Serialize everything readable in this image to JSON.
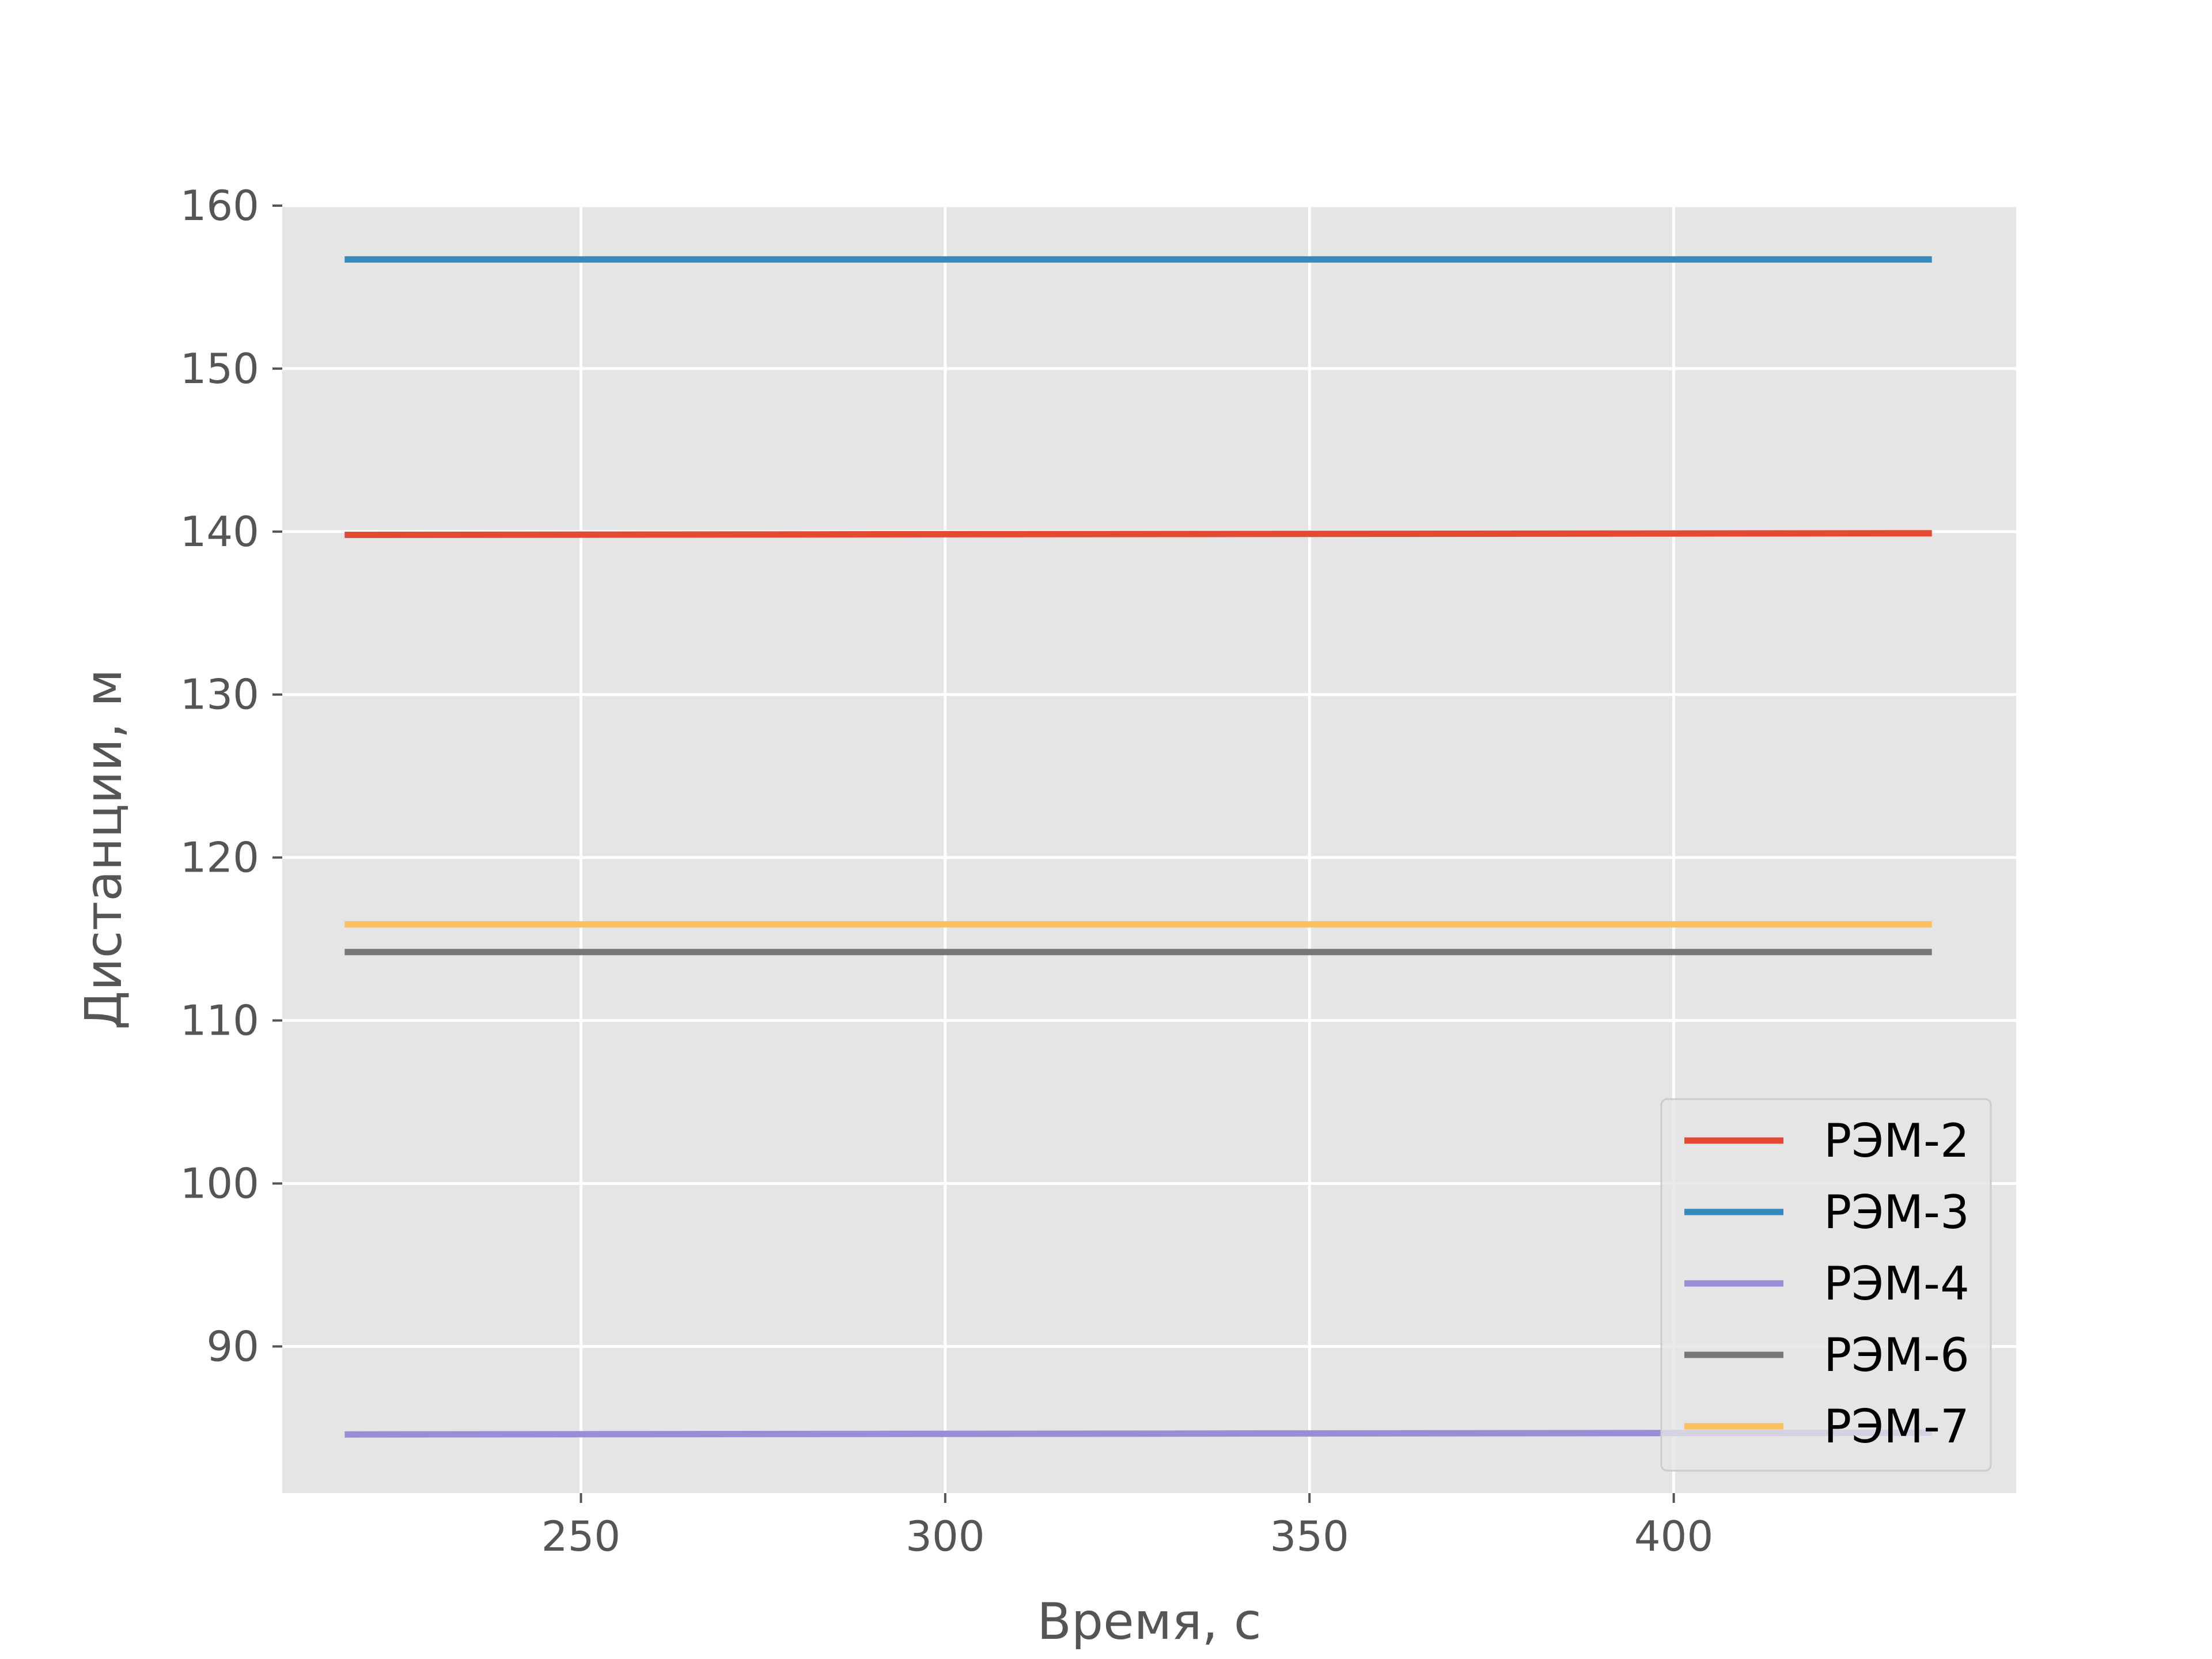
{
  "chart_data": {
    "type": "line",
    "title": "",
    "xlabel": "Время, с",
    "ylabel": "Дистанции, м",
    "xlim": [
      209,
      447
    ],
    "ylim": [
      81,
      160
    ],
    "xticks": [
      250,
      300,
      350,
      400
    ],
    "yticks": [
      90,
      100,
      110,
      120,
      130,
      140,
      150,
      160
    ],
    "grid": true,
    "legend_position": "lower-right",
    "x": [
      218,
      435
    ],
    "series": [
      {
        "name": "РЭМ-2",
        "color": "#E24A33",
        "values": [
          139.8,
          139.9
        ]
      },
      {
        "name": "РЭМ-3",
        "color": "#348ABD",
        "values": [
          156.7,
          156.7
        ]
      },
      {
        "name": "РЭМ-4",
        "color": "#988ED5",
        "values": [
          84.6,
          84.7
        ]
      },
      {
        "name": "РЭМ-6",
        "color": "#777777",
        "values": [
          114.2,
          114.2
        ]
      },
      {
        "name": "РЭМ-7",
        "color": "#FBC15E",
        "values": [
          115.9,
          115.9
        ]
      }
    ]
  }
}
